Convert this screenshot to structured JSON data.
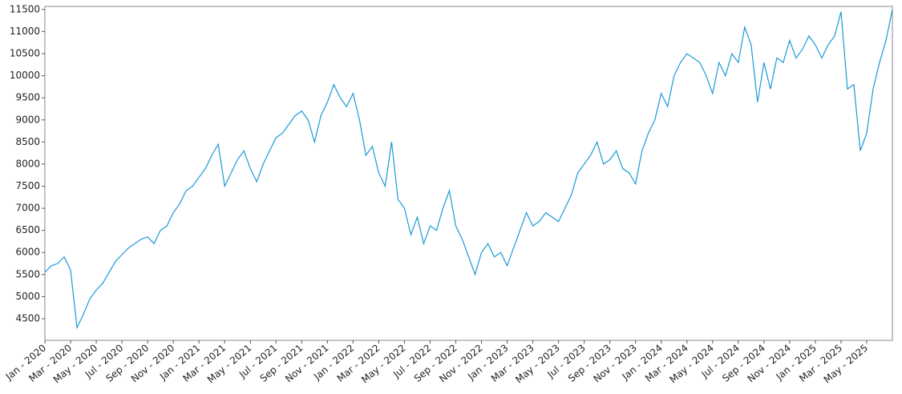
{
  "chart_data": {
    "type": "line",
    "categories": [
      "Jan - 2020",
      null,
      null,
      null,
      "Mar - 2020",
      null,
      null,
      null,
      "May - 2020",
      null,
      null,
      null,
      "Jul - 2020",
      null,
      null,
      null,
      "Sep - 2020",
      null,
      null,
      null,
      "Nov - 2020",
      null,
      null,
      null,
      "Jan - 2021",
      null,
      null,
      null,
      "Mar - 2021",
      null,
      null,
      null,
      "May - 2021",
      null,
      null,
      null,
      "Jul - 2021",
      null,
      null,
      null,
      "Sep - 2021",
      null,
      null,
      null,
      "Nov - 2021",
      null,
      null,
      null,
      "Jan - 2022",
      null,
      null,
      null,
      "Mar - 2022",
      null,
      null,
      null,
      "May - 2022",
      null,
      null,
      null,
      "Jul - 2022",
      null,
      null,
      null,
      "Sep - 2022",
      null,
      null,
      null,
      "Nov - 2022",
      null,
      null,
      null,
      "Jan - 2023",
      null,
      null,
      null,
      "Mar - 2023",
      null,
      null,
      null,
      "May - 2023",
      null,
      null,
      null,
      "Jul - 2023",
      null,
      null,
      null,
      "Sep - 2023",
      null,
      null,
      null,
      "Nov - 2023",
      null,
      null,
      null,
      "Jan - 2024",
      null,
      null,
      null,
      "Mar - 2024",
      null,
      null,
      null,
      "May - 2024",
      null,
      null,
      null,
      "Jul - 2024",
      null,
      null,
      null,
      "Sep - 2024",
      null,
      null,
      null,
      "Nov - 2024",
      null,
      null,
      null,
      "Jan - 2025",
      null,
      null,
      null,
      "Mar - 2025",
      null,
      null,
      null,
      "May - 2025",
      null,
      null,
      null,
      null
    ],
    "series": [
      {
        "color": "#1a9ad6",
        "values": [
          5550,
          5700,
          5750,
          5900,
          5600,
          4300,
          4600,
          4950,
          5150,
          5300,
          5550,
          5800,
          5950,
          6100,
          6200,
          6300,
          6350,
          6200,
          6500,
          6600,
          6900,
          7100,
          7400,
          7500,
          7700,
          7900,
          8200,
          8450,
          7500,
          7800,
          8100,
          8300,
          7900,
          7600,
          8000,
          8300,
          8600,
          8700,
          8900,
          9100,
          9200,
          9000,
          8500,
          9100,
          9400,
          9800,
          9500,
          9300,
          9600,
          9000,
          8200,
          8400,
          7800,
          7500,
          8500,
          7200,
          7000,
          6400,
          6800,
          6200,
          6600,
          6500,
          7000,
          7400,
          6600,
          6300,
          5900,
          5500,
          6000,
          6200,
          5900,
          6000,
          5700,
          6100,
          6500,
          6900,
          6600,
          6700,
          6900,
          6800,
          6700,
          7000,
          7300,
          7800,
          8000,
          8200,
          8500,
          8000,
          8100,
          8300,
          7900,
          7800,
          7550,
          8300,
          8700,
          9000,
          9600,
          9300,
          10000,
          10300,
          10500,
          10400,
          10300,
          10000,
          9600,
          10300,
          10000,
          10500,
          10300,
          11100,
          10700,
          9400,
          10300,
          9700,
          10400,
          10300,
          10800,
          10400,
          10600,
          10900,
          10700,
          10400,
          10700,
          10900,
          11450,
          9700,
          9800,
          8300,
          8700,
          9700,
          10300,
          10800,
          11500
        ]
      }
    ],
    "ylim": [
      4010,
      11570
    ],
    "yticks": [
      4500,
      5000,
      5500,
      6000,
      6500,
      7000,
      7500,
      8000,
      8500,
      9000,
      9500,
      10000,
      10500,
      11000,
      11500
    ]
  }
}
